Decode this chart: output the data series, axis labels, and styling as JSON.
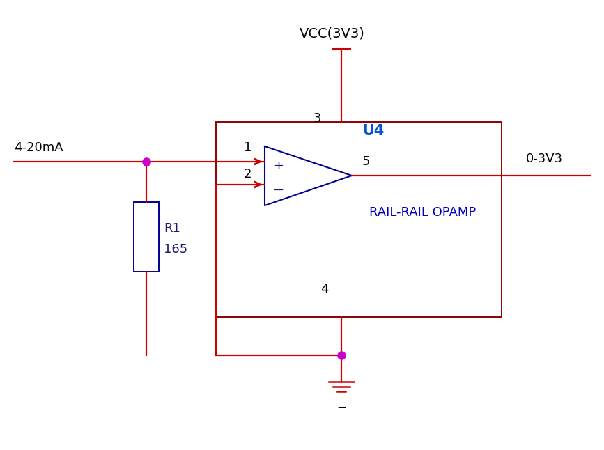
{
  "bg_color": "#ffffff",
  "wire_color": "#cc0000",
  "tri_color": "#00008b",
  "box_color": "#8b0000",
  "text_color_dark": "#1a1a6e",
  "text_color_black": "#000000",
  "junction_color": "#cc00cc",
  "arrow_color": "#cc0000",
  "res_color": "#00008b",
  "label_4_20mA": "4-20mA",
  "label_0_3V3": "0-3V3",
  "label_VCC": "VCC(3V3)",
  "label_U4": "U4",
  "label_opamp": "RAIL-RAIL OPAMP",
  "label_R1": "R1",
  "label_165": "165",
  "label_plus": "+",
  "label_minus": "−",
  "label_pin1": "1",
  "label_pin2": "2",
  "label_pin3": "3",
  "label_pin4": "4",
  "label_pin5": "5",
  "label_gnd": "−"
}
